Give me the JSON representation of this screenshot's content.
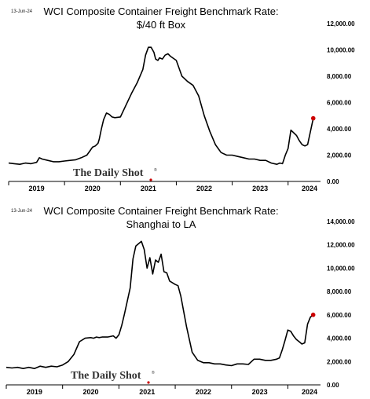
{
  "chart_data": [
    {
      "type": "line",
      "date_stamp": "13-Jun-24",
      "title_line1": "WCI Composite Container Freight Benchmark Rate:",
      "title_line2": "$/40 ft Box",
      "ylim": [
        0,
        12000
      ],
      "ytick_labels": [
        "0.00",
        "2,000.00",
        "4,000.00",
        "6,000.00",
        "8,000.00",
        "10,000.00",
        "12,000.00"
      ],
      "ytick_values": [
        0,
        2000,
        4000,
        6000,
        8000,
        10000,
        12000
      ],
      "xtick_labels": [
        "2019",
        "2020",
        "2021",
        "2022",
        "2023",
        "2024"
      ],
      "xlim": [
        2019.0,
        2024.58
      ],
      "brand": "The Daily Shot",
      "brand_mark": "®",
      "colors": {
        "line": "#000000",
        "last_point": "#cc0000"
      },
      "series": [
        {
          "x": [
            2019.0,
            2019.1,
            2019.2,
            2019.3,
            2019.4,
            2019.5,
            2019.55,
            2019.6,
            2019.7,
            2019.8,
            2019.9,
            2020.0,
            2020.1,
            2020.2,
            2020.3,
            2020.4,
            2020.45,
            2020.5,
            2020.55,
            2020.6,
            2020.62,
            2020.66,
            2020.7,
            2020.75,
            2020.8,
            2020.85,
            2020.9,
            2021.0,
            2021.1,
            2021.2,
            2021.3,
            2021.4,
            2021.45,
            2021.5,
            2021.55,
            2021.6,
            2021.63,
            2021.67,
            2021.7,
            2021.75,
            2021.8,
            2021.85,
            2021.9,
            2022.0,
            2022.1,
            2022.2,
            2022.3,
            2022.4,
            2022.5,
            2022.6,
            2022.7,
            2022.8,
            2022.9,
            2023.0,
            2023.1,
            2023.2,
            2023.3,
            2023.4,
            2023.5,
            2023.6,
            2023.7,
            2023.8,
            2023.85,
            2023.9,
            2023.92,
            2023.95,
            2024.0,
            2024.05,
            2024.1,
            2024.15,
            2024.2,
            2024.25,
            2024.3,
            2024.35,
            2024.4,
            2024.45
          ],
          "y": [
            1400,
            1350,
            1300,
            1400,
            1350,
            1450,
            1800,
            1700,
            1600,
            1500,
            1500,
            1550,
            1600,
            1650,
            1800,
            2000,
            2300,
            2600,
            2700,
            2900,
            3200,
            4000,
            4700,
            5200,
            5100,
            4900,
            4850,
            4900,
            5800,
            6700,
            7500,
            8500,
            9600,
            10200,
            10200,
            9800,
            9300,
            9200,
            9400,
            9300,
            9600,
            9700,
            9500,
            9200,
            8000,
            7600,
            7300,
            6500,
            5000,
            3800,
            2800,
            2200,
            2000,
            2000,
            1900,
            1800,
            1700,
            1700,
            1600,
            1600,
            1400,
            1300,
            1400,
            1350,
            1600,
            2000,
            2500,
            3900,
            3700,
            3500,
            3100,
            2800,
            2700,
            2800,
            3800,
            4800
          ]
        }
      ]
    },
    {
      "type": "line",
      "date_stamp": "13-Jun-24",
      "title_line1": "WCI Composite Container Freight Benchmark Rate:",
      "title_line2": "Shanghai to LA",
      "ylim": [
        0,
        14000
      ],
      "ytick_labels": [
        "0.00",
        "2,000.00",
        "4,000.00",
        "6,000.00",
        "8,000.00",
        "10,000.00",
        "12,000.00",
        "14,000.00"
      ],
      "ytick_values": [
        0,
        2000,
        4000,
        6000,
        8000,
        10000,
        12000,
        14000
      ],
      "xtick_labels": [
        "2019",
        "2020",
        "2021",
        "2022",
        "2023",
        "2024"
      ],
      "xlim": [
        2019.0,
        2024.58
      ],
      "brand": "The Daily Shot",
      "brand_mark": "®",
      "colors": {
        "line": "#000000",
        "last_point": "#cc0000"
      },
      "series": [
        {
          "x": [
            2019.0,
            2019.1,
            2019.2,
            2019.3,
            2019.4,
            2019.5,
            2019.6,
            2019.7,
            2019.8,
            2019.9,
            2020.0,
            2020.1,
            2020.2,
            2020.3,
            2020.4,
            2020.5,
            2020.55,
            2020.6,
            2020.65,
            2020.7,
            2020.8,
            2020.9,
            2020.95,
            2021.0,
            2021.05,
            2021.1,
            2021.2,
            2021.25,
            2021.3,
            2021.4,
            2021.45,
            2021.5,
            2021.55,
            2021.6,
            2021.65,
            2021.7,
            2021.75,
            2021.8,
            2021.85,
            2021.9,
            2022.0,
            2022.05,
            2022.1,
            2022.2,
            2022.3,
            2022.4,
            2022.5,
            2022.6,
            2022.7,
            2022.8,
            2022.9,
            2023.0,
            2023.1,
            2023.2,
            2023.3,
            2023.4,
            2023.5,
            2023.6,
            2023.7,
            2023.8,
            2023.85,
            2023.9,
            2023.95,
            2024.0,
            2024.05,
            2024.1,
            2024.15,
            2024.2,
            2024.25,
            2024.3,
            2024.35,
            2024.4,
            2024.45
          ],
          "y": [
            1500,
            1450,
            1500,
            1400,
            1500,
            1400,
            1600,
            1500,
            1600,
            1550,
            1700,
            2000,
            2600,
            3700,
            4000,
            4050,
            4000,
            4100,
            4050,
            4100,
            4100,
            4200,
            4000,
            4300,
            5100,
            6100,
            8300,
            10800,
            11900,
            12300,
            11600,
            10000,
            10900,
            9500,
            10700,
            10500,
            11200,
            9700,
            9600,
            8900,
            8600,
            8500,
            7600,
            5000,
            2800,
            2100,
            1900,
            1900,
            1800,
            1800,
            1700,
            1650,
            1800,
            1800,
            1750,
            2200,
            2200,
            2100,
            2100,
            2200,
            2300,
            3000,
            3800,
            4700,
            4600,
            4200,
            3900,
            3700,
            3500,
            3600,
            5200,
            5800,
            6000
          ]
        }
      ]
    }
  ]
}
